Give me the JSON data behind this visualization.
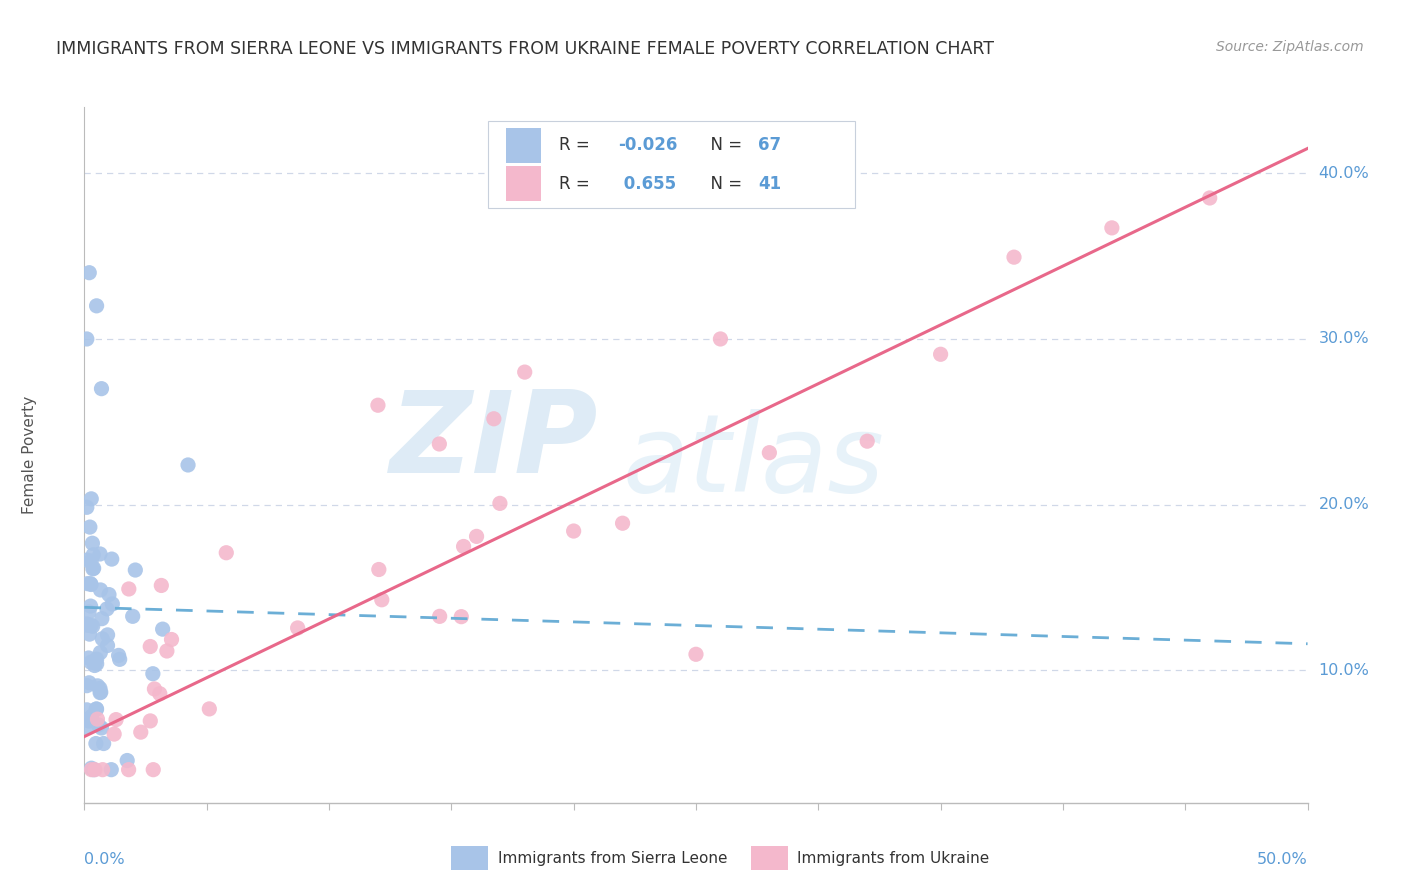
{
  "title": "IMMIGRANTS FROM SIERRA LEONE VS IMMIGRANTS FROM UKRAINE FEMALE POVERTY CORRELATION CHART",
  "source": "Source: ZipAtlas.com",
  "ylabel": "Female Poverty",
  "right_yticks": [
    "10.0%",
    "20.0%",
    "30.0%",
    "40.0%"
  ],
  "right_ytick_values": [
    0.1,
    0.2,
    0.3,
    0.4
  ],
  "xmin": 0.0,
  "xmax": 0.5,
  "ymin": 0.02,
  "ymax": 0.44,
  "sierra_leone_color": "#a8c4e8",
  "ukraine_color": "#f4b8cc",
  "sierra_leone_line_color": "#6baed6",
  "ukraine_line_color": "#e8688a",
  "legend_R_sl": "-0.026",
  "legend_N_sl": "67",
  "legend_R_uk": "0.655",
  "legend_N_uk": "41",
  "watermark_zip": "ZIP",
  "watermark_atlas": "atlas",
  "sl_trend_x0": 0.0,
  "sl_trend_x1": 0.5,
  "sl_trend_y0": 0.138,
  "sl_trend_y1": 0.116,
  "uk_trend_x0": 0.0,
  "uk_trend_x1": 0.5,
  "uk_trend_y0": 0.06,
  "uk_trend_y1": 0.415,
  "n_xticks": 11
}
